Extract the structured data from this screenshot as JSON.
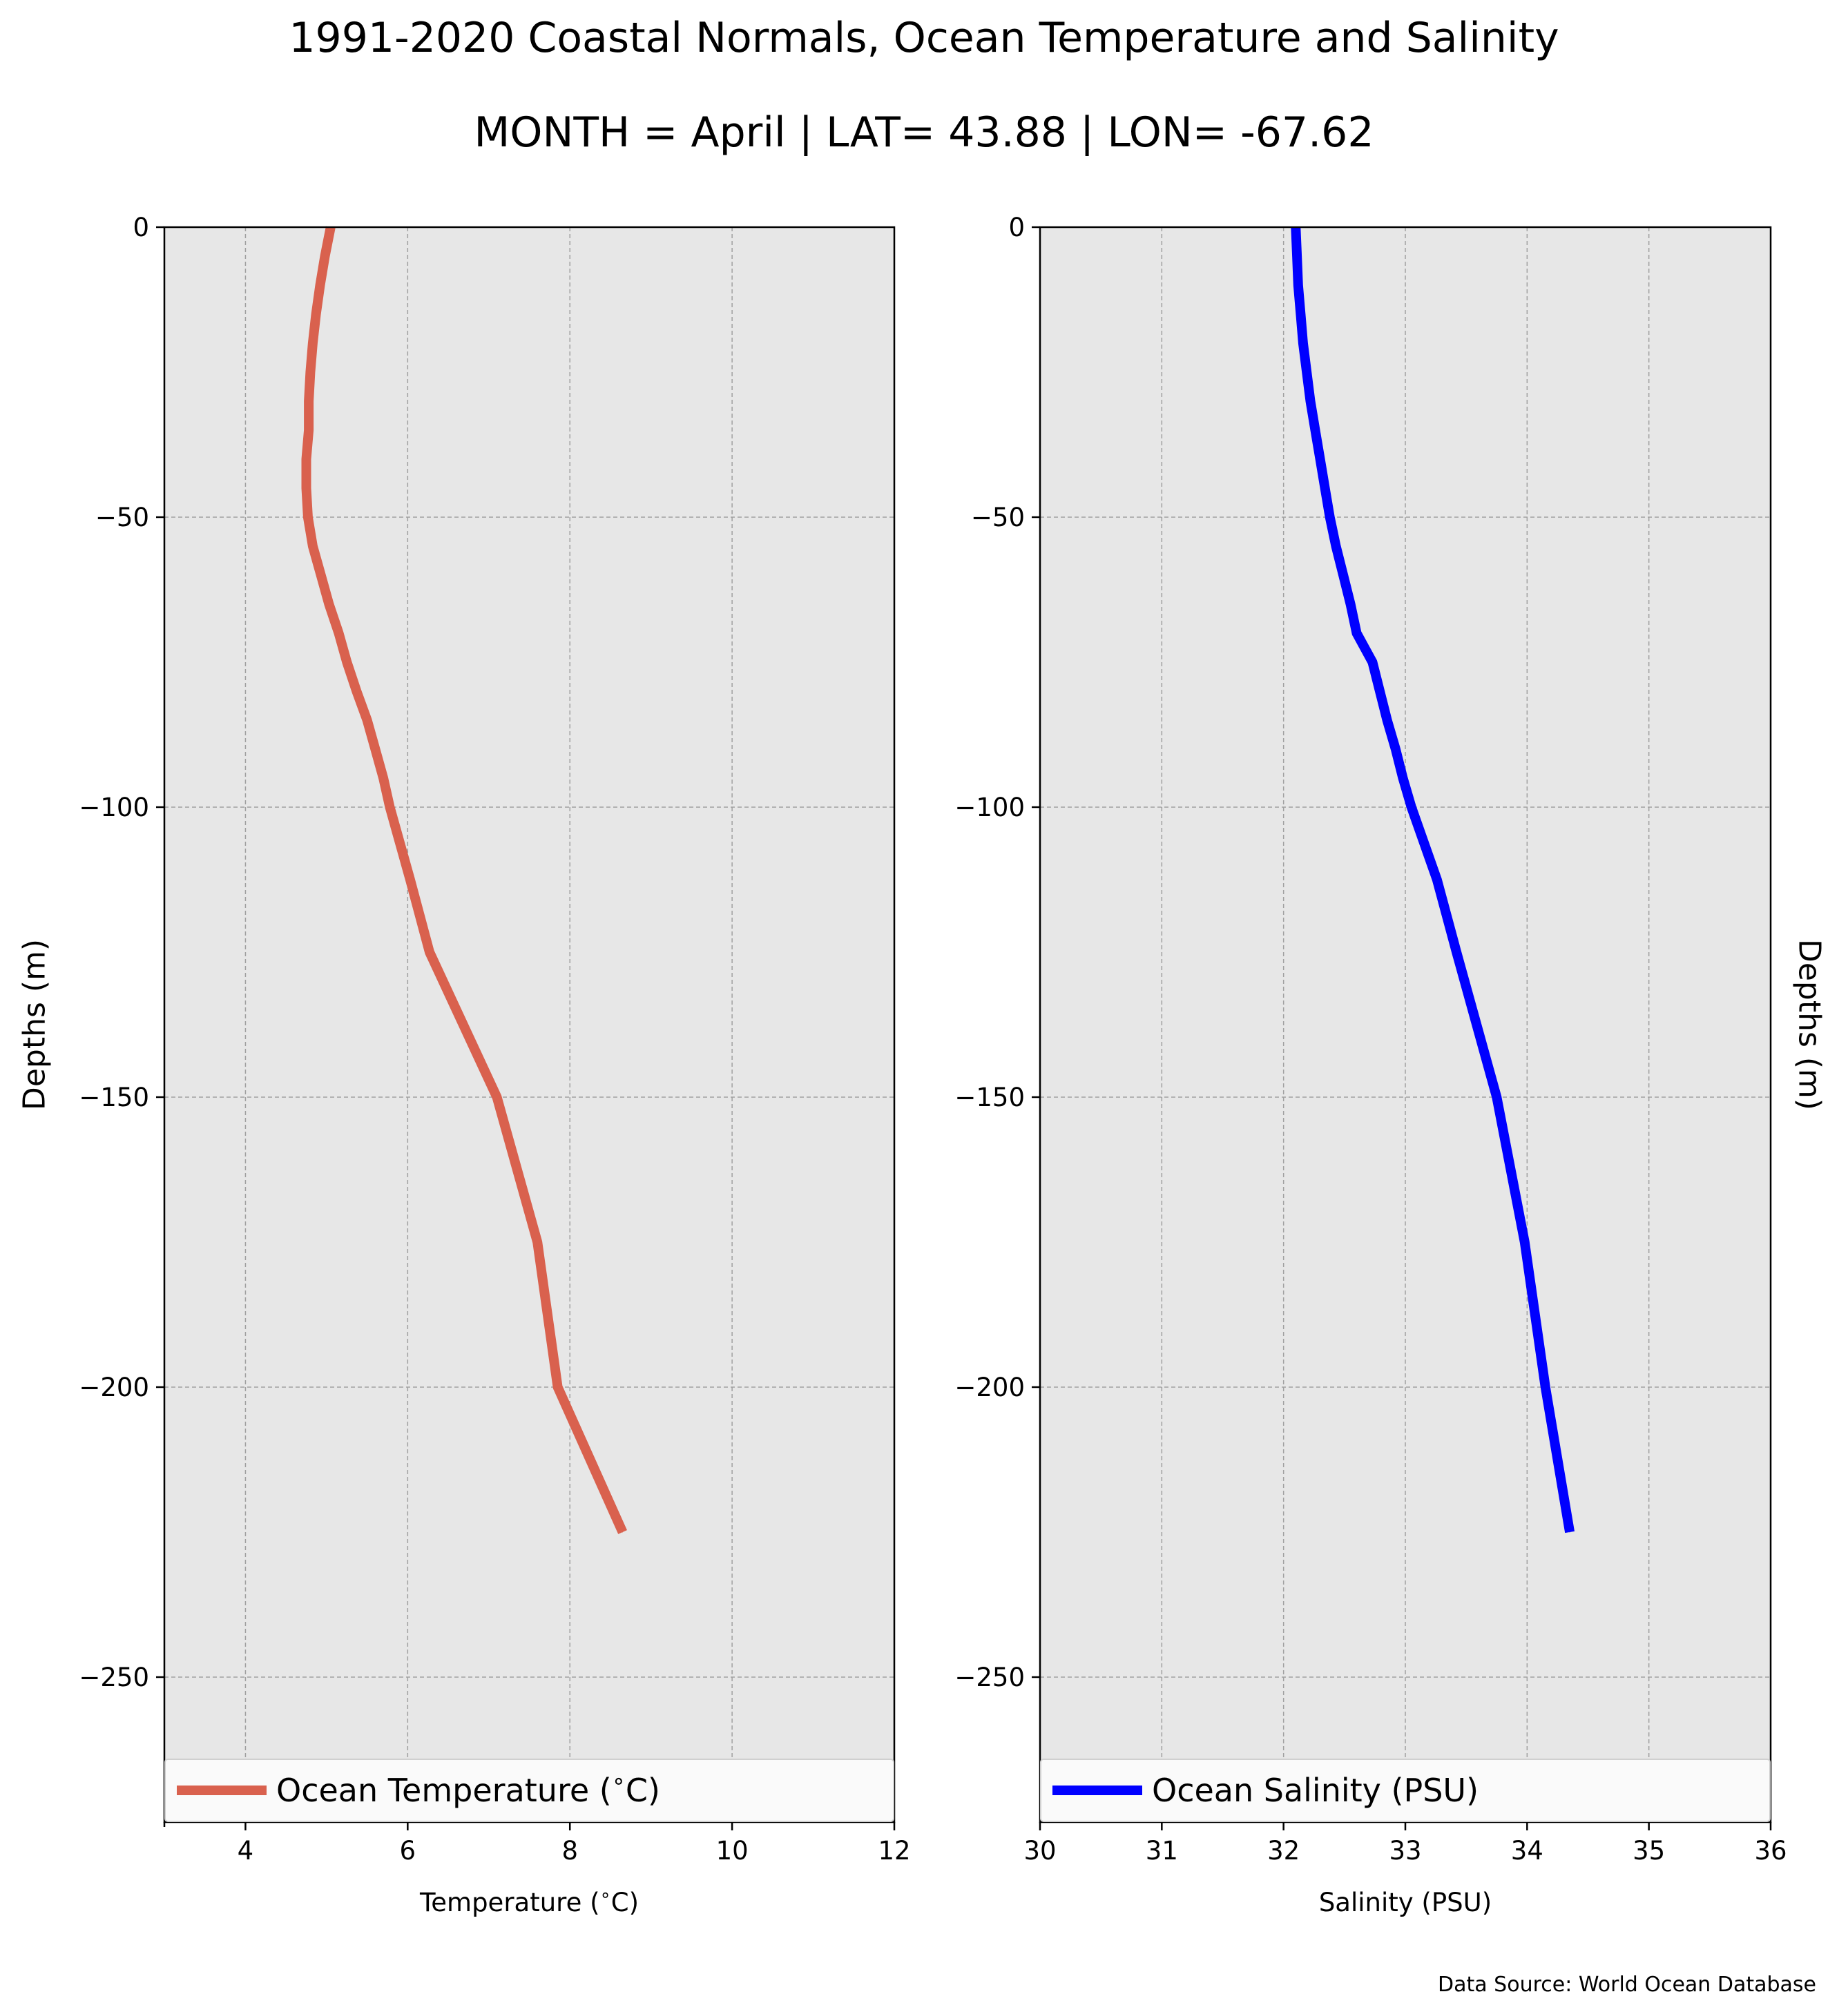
{
  "title": "1991-2020 Coastal Normals, Ocean Temperature and Salinity",
  "subtitle": "MONTH = April | LAT= 43.88 | LON= -67.62",
  "source_note": "Data Source: World Ocean Database",
  "colors": {
    "background": "#ffffff",
    "plot_face": "#e7e7e7",
    "grid": "#a0a0a0",
    "temperature": "#d9614e",
    "salinity": "#0000ff"
  },
  "chart_data": [
    {
      "type": "line",
      "xlabel": "Temperature ($^\\circ$C)",
      "ylabel": "Depths (m)",
      "xlim": [
        3,
        12
      ],
      "ylim": [
        -275,
        0
      ],
      "xticks": [
        4,
        6,
        8,
        10,
        12
      ],
      "xtick_labels": [
        "4",
        "6",
        "8",
        "10",
        "12"
      ],
      "yticks": [
        0,
        -50,
        -100,
        -150,
        -200,
        -250
      ],
      "ytick_labels": [
        "0",
        "−50",
        "−100",
        "−150",
        "−200",
        "−250"
      ],
      "grid": true,
      "legend": "bottom",
      "series": [
        {
          "name": "Ocean Temperature ($^\\circ$C)",
          "color": "#d9614e",
          "points": [
            {
              "x": 5.05,
              "y": 0
            },
            {
              "x": 4.98,
              "y": -5
            },
            {
              "x": 4.92,
              "y": -10
            },
            {
              "x": 4.87,
              "y": -15
            },
            {
              "x": 4.83,
              "y": -20
            },
            {
              "x": 4.8,
              "y": -25
            },
            {
              "x": 4.78,
              "y": -30
            },
            {
              "x": 4.78,
              "y": -35
            },
            {
              "x": 4.75,
              "y": -40
            },
            {
              "x": 4.75,
              "y": -45
            },
            {
              "x": 4.77,
              "y": -50
            },
            {
              "x": 4.83,
              "y": -55
            },
            {
              "x": 4.93,
              "y": -60
            },
            {
              "x": 5.03,
              "y": -65
            },
            {
              "x": 5.15,
              "y": -70
            },
            {
              "x": 5.25,
              "y": -75
            },
            {
              "x": 5.37,
              "y": -80
            },
            {
              "x": 5.5,
              "y": -85
            },
            {
              "x": 5.6,
              "y": -90
            },
            {
              "x": 5.7,
              "y": -95
            },
            {
              "x": 5.78,
              "y": -100
            },
            {
              "x": 6.03,
              "y": -112.5
            },
            {
              "x": 6.27,
              "y": -125
            },
            {
              "x": 7.1,
              "y": -150
            },
            {
              "x": 7.6,
              "y": -175
            },
            {
              "x": 7.85,
              "y": -200
            },
            {
              "x": 8.65,
              "y": -225
            }
          ]
        }
      ]
    },
    {
      "type": "line",
      "xlabel": "Salinity (PSU)",
      "ylabel": "Depths (m)",
      "xlim": [
        30,
        36
      ],
      "ylim": [
        -275,
        0
      ],
      "xticks": [
        30,
        31,
        32,
        33,
        34,
        35,
        36
      ],
      "xtick_labels": [
        "30",
        "31",
        "32",
        "33",
        "34",
        "35",
        "36"
      ],
      "yticks": [
        0,
        -50,
        -100,
        -150,
        -200,
        -250
      ],
      "ytick_labels": [
        "0",
        "−50",
        "−100",
        "−150",
        "−200",
        "−250"
      ],
      "grid": true,
      "legend": "bottom",
      "series": [
        {
          "name": "Ocean Salinity (PSU)",
          "color": "#0000ff",
          "points": [
            {
              "x": 32.1,
              "y": 0
            },
            {
              "x": 32.11,
              "y": -5
            },
            {
              "x": 32.12,
              "y": -10
            },
            {
              "x": 32.14,
              "y": -15
            },
            {
              "x": 32.16,
              "y": -20
            },
            {
              "x": 32.19,
              "y": -25
            },
            {
              "x": 32.22,
              "y": -30
            },
            {
              "x": 32.26,
              "y": -35
            },
            {
              "x": 32.3,
              "y": -40
            },
            {
              "x": 32.34,
              "y": -45
            },
            {
              "x": 32.38,
              "y": -50
            },
            {
              "x": 32.43,
              "y": -55
            },
            {
              "x": 32.49,
              "y": -60
            },
            {
              "x": 32.55,
              "y": -65
            },
            {
              "x": 32.6,
              "y": -70
            },
            {
              "x": 32.73,
              "y": -75
            },
            {
              "x": 32.79,
              "y": -80
            },
            {
              "x": 32.85,
              "y": -85
            },
            {
              "x": 32.92,
              "y": -90
            },
            {
              "x": 32.98,
              "y": -95
            },
            {
              "x": 33.05,
              "y": -100
            },
            {
              "x": 33.26,
              "y": -112.5
            },
            {
              "x": 33.42,
              "y": -125
            },
            {
              "x": 33.75,
              "y": -150
            },
            {
              "x": 33.98,
              "y": -175
            },
            {
              "x": 34.15,
              "y": -200
            },
            {
              "x": 34.35,
              "y": -225
            }
          ]
        }
      ]
    }
  ]
}
